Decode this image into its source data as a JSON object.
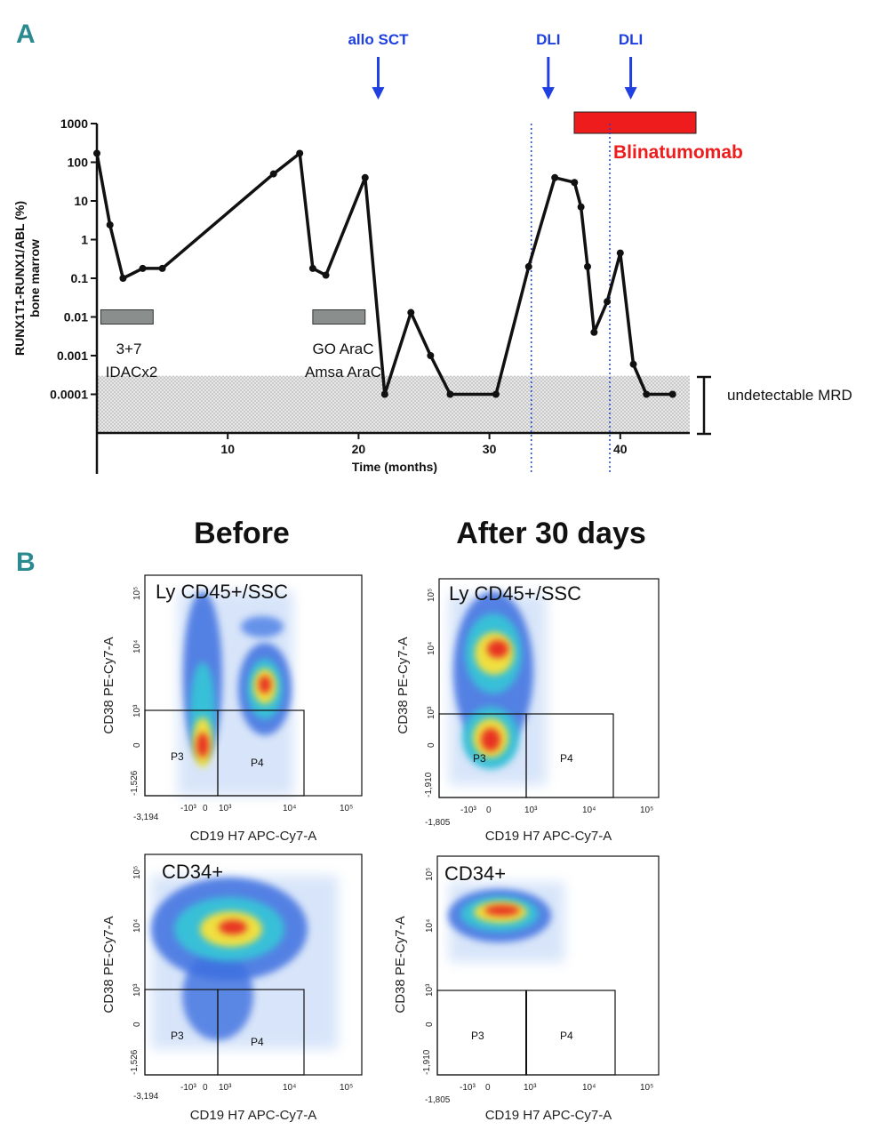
{
  "panel_a_letter": "A",
  "panel_b_letter": "B",
  "chart_data": {
    "type": "line",
    "title": "",
    "xlabel": "Time (months)",
    "ylabel_lines": [
      "RUNX1T1-RUNX1/ABL (%)",
      "bone marrow"
    ],
    "yscale": "log",
    "xlim": [
      0,
      45
    ],
    "ylim": [
      1e-05,
      1000
    ],
    "x_ticks": [
      10,
      20,
      30,
      40
    ],
    "y_ticks": [
      {
        "value": 1000,
        "label": "1000"
      },
      {
        "value": 100,
        "label": "100"
      },
      {
        "value": 10,
        "label": "10"
      },
      {
        "value": 1,
        "label": "1"
      },
      {
        "value": 0.1,
        "label": "0.1"
      },
      {
        "value": 0.01,
        "label": "0.01"
      },
      {
        "value": 0.001,
        "label": "0.001"
      },
      {
        "value": 0.0001,
        "label": "0.0001"
      }
    ],
    "series": [
      {
        "name": "RUNX1T1-RUNX1/ABL",
        "x": [
          0,
          1,
          2,
          3.5,
          5,
          13.5,
          15.5,
          16.5,
          17.5,
          20.5,
          22,
          24,
          25.5,
          27,
          30.5,
          33,
          35,
          36.5,
          37,
          37.5,
          38,
          39,
          40,
          41,
          42,
          44
        ],
        "y": [
          170,
          2.4,
          0.1,
          0.18,
          0.18,
          50,
          170,
          0.18,
          0.12,
          40,
          0.0001,
          0.013,
          0.001,
          0.0001,
          0.0001,
          0.2,
          40,
          30,
          7,
          0.2,
          0.004,
          0.025,
          0.45,
          0.0006,
          0.0001,
          0.0001
        ]
      }
    ],
    "treatment_bars": [
      {
        "start": 0.3,
        "end": 4.3,
        "value": 0.01,
        "label_lines": [
          "3+7",
          "IDACx2"
        ]
      },
      {
        "start": 16.5,
        "end": 20.5,
        "value": 0.01,
        "label_lines": [
          "GO AraC",
          "Amsa AraC"
        ]
      }
    ],
    "blinatumomab": {
      "start": 36,
      "end": 45.5,
      "label": "Blinatumomab"
    },
    "events": [
      {
        "label": "allo SCT",
        "x": 21.5
      },
      {
        "label": "DLI",
        "x": 34.5
      },
      {
        "label": "DLI",
        "x": 40.8
      }
    ],
    "dotted_lines_x": [
      33.2,
      39.2
    ],
    "mrd_band": {
      "from": 1e-05,
      "to": 0.0003,
      "label": "undetectable MRD"
    }
  },
  "flow": {
    "before_title": "Before",
    "after_title": "After 30 days",
    "plots": [
      {
        "id": "before-ly",
        "gate": "Ly CD45+/SSC",
        "x_min_label": "-3,194",
        "y_min_label": "-1,526",
        "xlabel": "CD19 H7 APC-Cy7-A",
        "ylabel": "CD38 PE-Cy7-A",
        "p3": "P3",
        "p4": "P4"
      },
      {
        "id": "after-ly",
        "gate": "Ly CD45+/SSC",
        "x_min_label": "-1,805",
        "y_min_label": "-1,910",
        "xlabel": "CD19 H7 APC-Cy7-A",
        "ylabel": "CD38 PE-Cy7-A",
        "p3": "P3",
        "p4": "P4"
      },
      {
        "id": "before-cd34",
        "gate": "CD34+",
        "x_min_label": "-3,194",
        "y_min_label": "-1,526",
        "xlabel": "CD19 H7 APC-Cy7-A",
        "ylabel": "CD38 PE-Cy7-A",
        "p3": "P3",
        "p4": "P4"
      },
      {
        "id": "after-cd34",
        "gate": "CD34+",
        "x_min_label": "-1,805",
        "y_min_label": "-1,910",
        "xlabel": "CD19 H7 APC-Cy7-A",
        "ylabel": "CD38 PE-Cy7-A",
        "p3": "P3",
        "p4": "P4"
      }
    ],
    "tick_labels": {
      "x_neg": "-10³",
      "x_zero": "0",
      "x_3": "10³",
      "x_4": "10⁴",
      "x_5": "10⁵",
      "y_zero": "0",
      "y_3": "10³",
      "y_4": "10⁴",
      "y_5": "10⁵"
    }
  }
}
